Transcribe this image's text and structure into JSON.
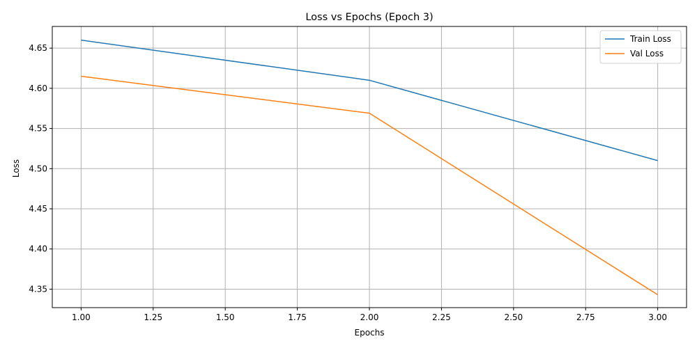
{
  "chart_data": {
    "type": "line",
    "title": "Loss vs Epochs (Epoch 3)",
    "xlabel": "Epochs",
    "ylabel": "Loss",
    "xlim": [
      0.9,
      3.1
    ],
    "ylim": [
      4.327,
      4.677
    ],
    "xticks": [
      1.0,
      1.25,
      1.5,
      1.75,
      2.0,
      2.25,
      2.5,
      2.75,
      3.0
    ],
    "xtick_labels": [
      "1.00",
      "1.25",
      "1.50",
      "1.75",
      "2.00",
      "2.25",
      "2.50",
      "2.75",
      "3.00"
    ],
    "yticks": [
      4.35,
      4.4,
      4.45,
      4.5,
      4.55,
      4.6,
      4.65
    ],
    "ytick_labels": [
      "4.35",
      "4.40",
      "4.45",
      "4.50",
      "4.55",
      "4.60",
      "4.65"
    ],
    "grid": true,
    "legend_position": "top-right",
    "x": [
      1,
      2,
      3
    ],
    "series": [
      {
        "name": "Train Loss",
        "color": "#1f77b4",
        "values": [
          4.66,
          4.61,
          4.51
        ]
      },
      {
        "name": "Val Loss",
        "color": "#ff7f0e",
        "values": [
          4.615,
          4.569,
          4.343
        ]
      }
    ]
  }
}
